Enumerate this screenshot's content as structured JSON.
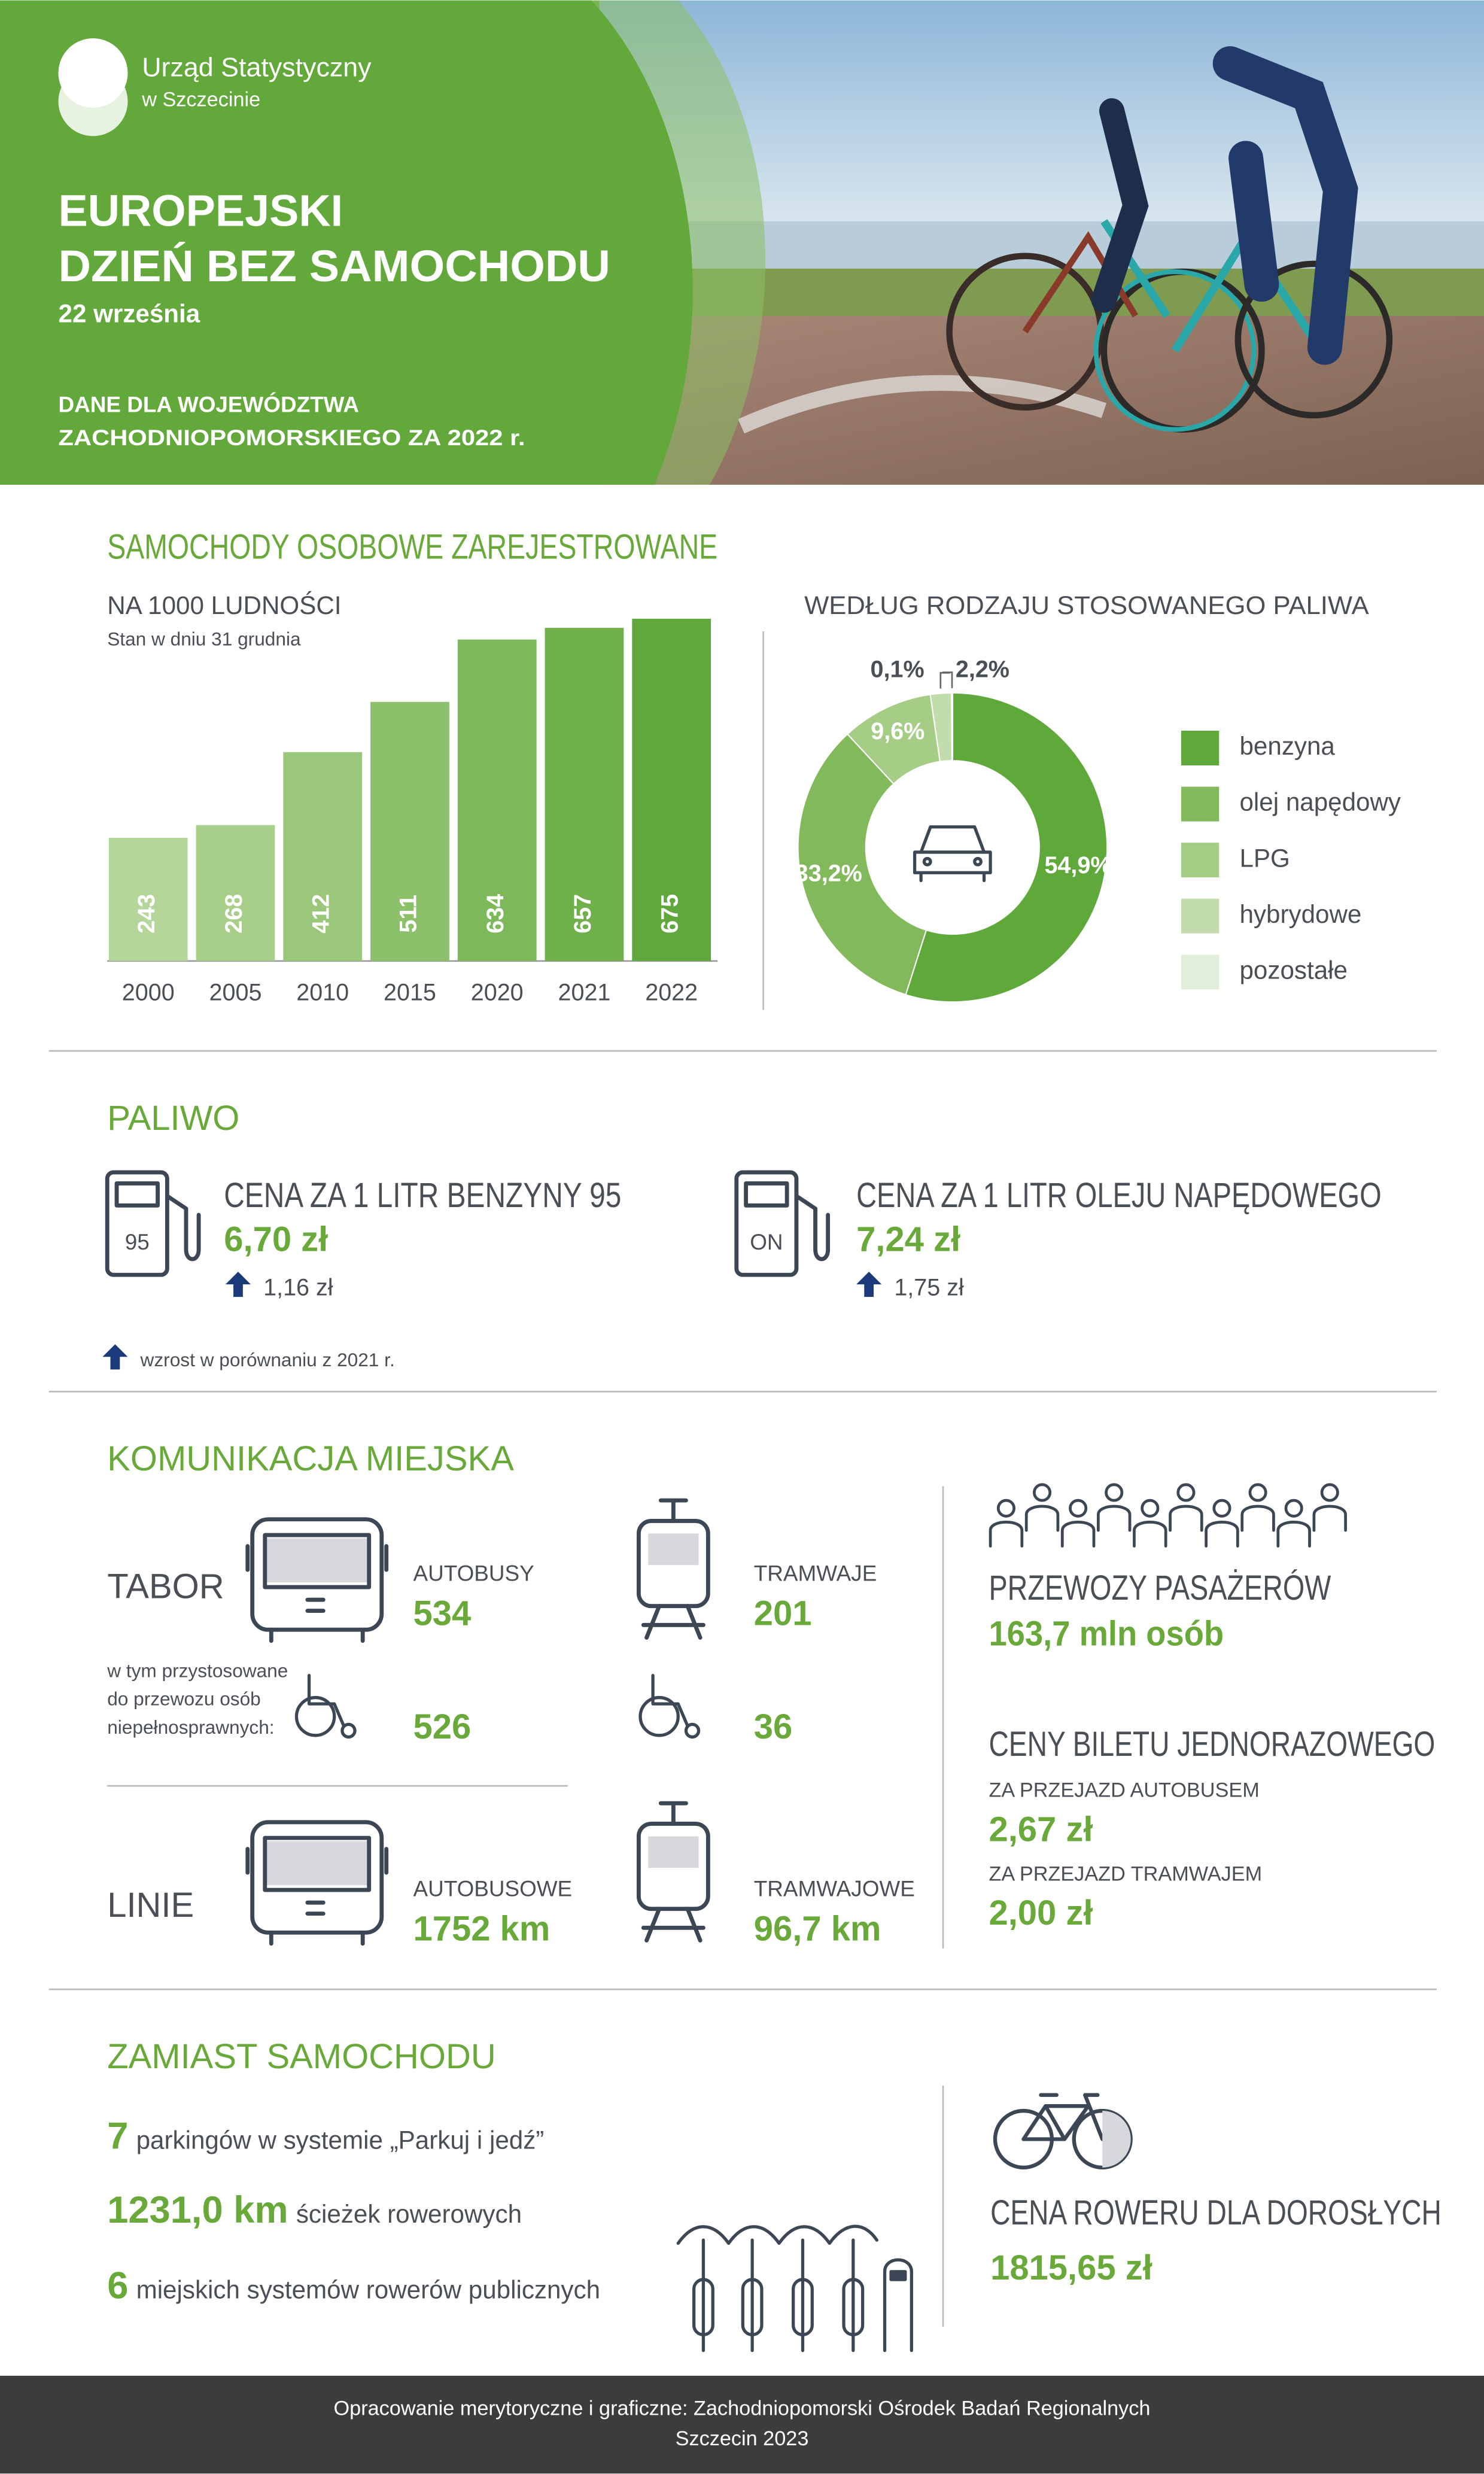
{
  "header": {
    "org": [
      "Urząd Statystyczny",
      "w Szczecinie"
    ],
    "title": [
      "EUROPEJSKI",
      "DZIEŃ BEZ SAMOCHODU"
    ],
    "date": "22 września",
    "scope": [
      "DANE DLA WOJEWÓDZTWA",
      "ZACHODNIOPOMORSKIEGO ZA 2022 r."
    ]
  },
  "cars": {
    "title": "SAMOCHODY OSOBOWE ZAREJESTROWANE"
  },
  "chart_data": [
    {
      "type": "bar",
      "title": "NA 1000 LUDNOŚCI",
      "subtitle": "Stan w dniu 31 grudnia",
      "categories": [
        "2000",
        "2005",
        "2010",
        "2015",
        "2020",
        "2021",
        "2022"
      ],
      "values": [
        243,
        268,
        412,
        511,
        634,
        657,
        675
      ],
      "colors": [
        "#b5d69b",
        "#a8cf8a",
        "#9bc77a",
        "#8cc06a",
        "#7db85a",
        "#6fb04b",
        "#60a83c"
      ]
    },
    {
      "type": "pie",
      "title": "WEDŁUG RODZAJU STOSOWANEGO PALIWA",
      "categories": [
        "benzyna",
        "olej napędowy",
        "LPG",
        "hybrydowe",
        "pozostałe"
      ],
      "values": [
        54.9,
        33.2,
        9.6,
        2.2,
        0.1
      ],
      "value_labels": [
        "54,9%",
        "33,2%",
        "9,6%",
        "2,2%",
        "0,1%"
      ],
      "colors": [
        "#5fa83a",
        "#82b95a",
        "#a5cd86",
        "#c3dcae",
        "#e2eedb"
      ]
    }
  ],
  "fuel": {
    "title": "PALIWO",
    "items": [
      {
        "name": "CENA ZA 1 LITR BENZYNY 95",
        "price": "6,70 zł",
        "change": "1,16 zł",
        "icon": "95"
      },
      {
        "name": "CENA ZA 1 LITR OLEJU NAPĘDOWEGO",
        "price": "7,24 zł",
        "change": "1,75 zł",
        "icon": "ON"
      }
    ],
    "note": "wzrost w porównaniu z 2021 r."
  },
  "transport": {
    "title": "KOMUNIKACJA MIEJSKA",
    "fleet_label": "TABOR",
    "lines_label": "LINIE",
    "accessible_note": [
      "w tym przystosowane",
      "do przewozu osób",
      "niepełnosprawnych:"
    ],
    "fleet": [
      {
        "name": "AUTOBUSY",
        "value": "534",
        "accessible": "526"
      },
      {
        "name": "TRAMWAJE",
        "value": "201",
        "accessible": "36"
      }
    ],
    "lines": [
      {
        "name": "AUTOBUSOWE",
        "value": "1752 km"
      },
      {
        "name": "TRAMWAJOWE",
        "value": "96,7 km"
      }
    ],
    "passengers": {
      "title": "PRZEWOZY PASAŻERÓW",
      "value": "163,7 mln osób"
    },
    "tickets": {
      "title": "CENY BILETU JEDNORAZOWEGO",
      "items": [
        {
          "name": "ZA PRZEJAZD AUTOBUSEM",
          "price": "2,67 zł"
        },
        {
          "name": "ZA PRZEJAZD TRAMWAJEM",
          "price": "2,00 zł"
        }
      ]
    }
  },
  "alternative": {
    "title": "ZAMIAST SAMOCHODU",
    "items": [
      {
        "value": "7",
        "text": "parkingów w systemie „Parkuj i jedź”"
      },
      {
        "value": "1231,0 km",
        "text": "ścieżek rowerowych"
      },
      {
        "value": "6",
        "text": "miejskich systemów rowerów publicznych"
      }
    ],
    "bike_price": {
      "title": "CENA ROWERU DLA DOROSŁYCH",
      "value": "1815,65 zł"
    }
  },
  "footer": [
    "Opracowanie merytoryczne i graficzne: Zachodniopomorski Ośrodek Badań Regionalnych",
    "Szczecin 2023"
  ]
}
